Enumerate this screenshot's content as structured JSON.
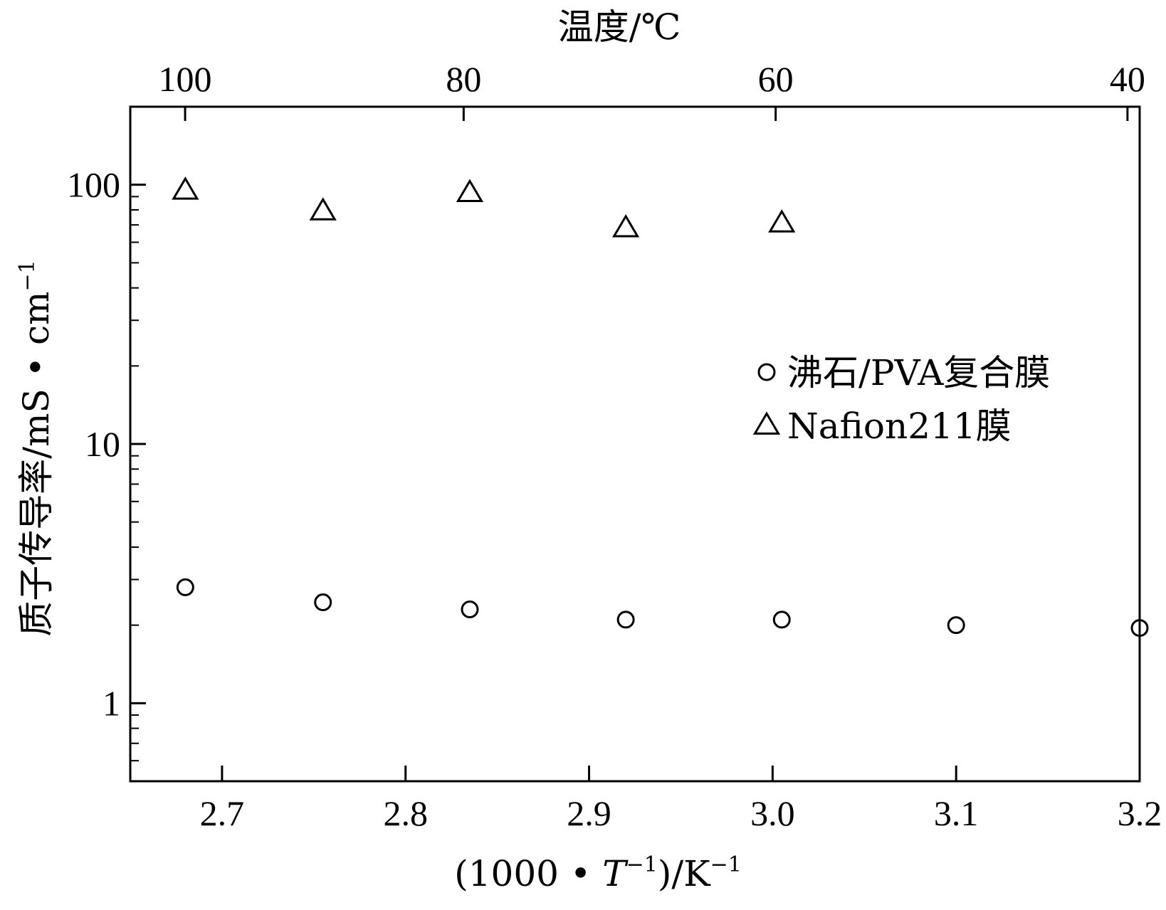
{
  "chart_data": {
    "type": "scatter",
    "y_scale": "log",
    "xlim": [
      2.65,
      3.2
    ],
    "ylim": [
      0.5,
      200
    ],
    "x_ticks": [
      {
        "value": 2.7,
        "label": "2.7"
      },
      {
        "value": 2.8,
        "label": "2.8"
      },
      {
        "value": 2.9,
        "label": "2.9"
      },
      {
        "value": 3.0,
        "label": "3.0"
      },
      {
        "value": 3.1,
        "label": "3.1"
      },
      {
        "value": 3.2,
        "label": "3.2"
      }
    ],
    "y_ticks": [
      {
        "value": 1,
        "label": "1"
      },
      {
        "value": 10,
        "label": "10"
      },
      {
        "value": 100,
        "label": "100"
      }
    ],
    "top_ticks": [
      {
        "value": 100,
        "label": "100"
      },
      {
        "value": 80,
        "label": "80"
      },
      {
        "value": 60,
        "label": "60"
      },
      {
        "value": 40,
        "label": "40"
      }
    ],
    "xlabel": {
      "pre": "(1000 • ",
      "var": "T",
      "sup1": "−1",
      "mid": ")/K",
      "sup2": "−1"
    },
    "ylabel": {
      "main": "质子传导率/mS • cm",
      "sup": "−1"
    },
    "top_xlabel": "温度/℃",
    "series": [
      {
        "name": "沸石/PVA复合膜",
        "marker": "circle",
        "x": [
          2.68,
          2.755,
          2.835,
          2.92,
          3.005,
          3.1,
          3.2
        ],
        "y": [
          2.8,
          2.45,
          2.3,
          2.1,
          2.1,
          2.0,
          1.95
        ]
      },
      {
        "name": "Nafion211膜",
        "marker": "triangle",
        "x": [
          2.68,
          2.755,
          2.835,
          2.92,
          3.005
        ],
        "y": [
          95,
          79,
          93,
          68,
          71
        ]
      }
    ],
    "legend_position": "right"
  }
}
